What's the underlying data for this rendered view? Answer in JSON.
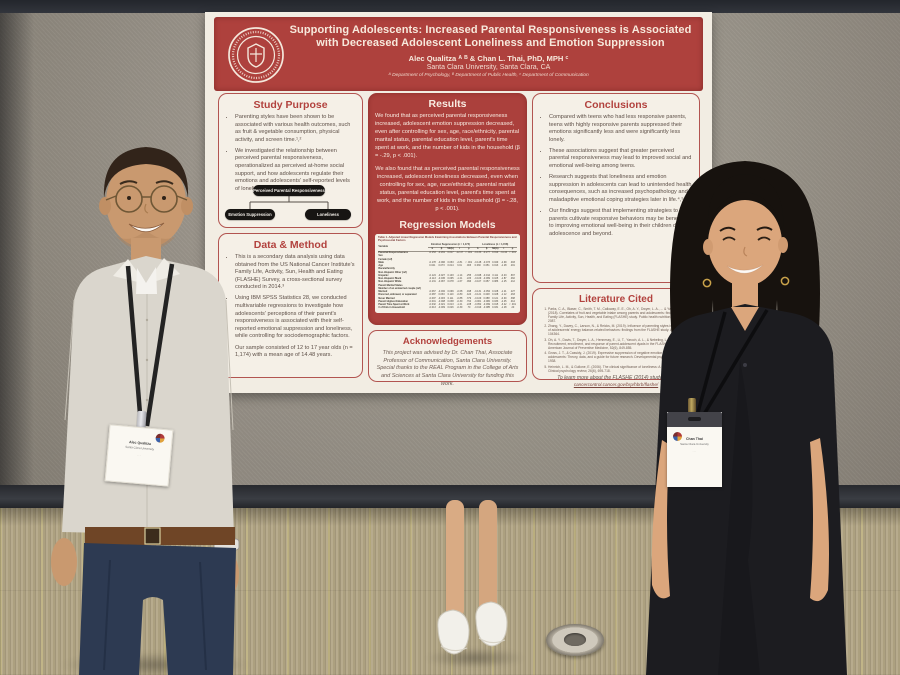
{
  "scene": {
    "colors": {
      "poster_red": "#AE413D",
      "poster_paper": "#F2EDE3",
      "panel_border_red": "#B25450",
      "heading_red": "#B2423E",
      "wall_gray": "#9A9388",
      "carpet_tan": "#B3A78A",
      "pill_black": "#171513"
    }
  },
  "poster": {
    "header": {
      "title": "Supporting Adolescents: Increased Parental Responsiveness is Associated with Decreased Adolescent Loneliness and Emotion Suppression",
      "authors": "Alec Qualitza ᴬ ᴮ & Chan L. Thai, PhD, MPH ᶜ",
      "affiliation": "Santa Clara University, Santa Clara, CA",
      "departments": "ᴬ Department of Psychology, ᴮ Department of Public Health, ᶜ Department of Communication",
      "logo_alt": "Santa Clara University seal, 1851"
    },
    "study_purpose": {
      "heading": "Study Purpose",
      "bullets": [
        "Parenting styles have been shown to be associated with various health outcomes, such as fruit & vegetable consumption, physical activity, and screen time.¹,²",
        "We investigated the relationship between perceived parental responsiveness, operationalized as perceived at-home social support, and how adolescents regulate their emotions and adolescents' self-reported levels of loneliness."
      ],
      "diagram": {
        "parent": "Perceived Parental Responsiveness",
        "child_left": "Emotion Suppression",
        "child_right": "Loneliness"
      }
    },
    "data_method": {
      "heading": "Data & Method",
      "bullets": [
        "This is a secondary data analysis using data obtained from the US National Cancer Institute's Family Life, Activity, Sun, Health and Eating (FLASHE) Survey, a cross-sectional survey conducted in 2014.³",
        "Using IBM SPSS Statistics 28, we conducted multivariable regressions to investigate how adolescents' perceptions of their parent's responsiveness is associated with their self-reported emotional suppression and loneliness, while controlling for sociodemographic factors.",
        "Our sample consisted of 12 to 17 year olds (n = 1,174) with a mean age of 14.48 years."
      ]
    },
    "results": {
      "heading": "Results",
      "paragraphs": [
        "We found that as perceived parental responsiveness increased, adolescent emotion suppression decreased, even after controlling for sex, age, race/ethnicity, parental marital status, parental education level, parent's time spent at work, and the number of kids in the household (β = -.29, p < .001).",
        "We also found that as perceived parental responsiveness increased, adolescent loneliness decreased, even when controlling for sex, age, race/ethnicity, parental marital status, parental education level, parent's time spent at work, and the number of kids in the household (β = -.28, p < .001)."
      ]
    },
    "regression": {
      "heading": "Regression Models",
      "table": {
        "caption": "Table 1. Adjusted Linear Regression Models Examining Associations Between Parental Responsiveness and Psychosocial Factors",
        "variable_label": "Variable",
        "groups": [
          "Emotion Suppression (n = 1,174)",
          "Loneliness (n = 1,158)"
        ],
        "sub_columns": [
          "b",
          "β",
          "SE(b)",
          "t",
          "p"
        ],
        "rows": [
          [
            "Parental Responsiveness",
            "-0.153",
            "-0.291",
            "0.017",
            "-12.47",
            "< .001",
            "-0.133",
            "-0.277",
            "0.019",
            "-11.44",
            "< .001"
          ],
          [
            "Sex",
            "",
            "",
            "",
            "",
            "",
            "",
            "",
            "",
            "",
            ""
          ],
          [
            "Female (ref)",
            "",
            "",
            "",
            "",
            "",
            "",
            "",
            "",
            "",
            ""
          ],
          [
            "Male",
            "-0.178",
            "-0.096",
            "0.063",
            "-2.81",
            "< .001",
            "-0.148",
            "-0.073",
            "0.049",
            "-2.99",
            ".003"
          ],
          [
            "Age",
            "0.041",
            "0.073",
            "0.014",
            "3.01",
            ".003",
            "0.030",
            "0.051",
            "0.013",
            "-1.28",
            ".201"
          ],
          [
            "Race/ethnicity",
            "",
            "",
            "",
            "",
            "",
            "",
            "",
            "",
            "",
            ""
          ],
          [
            "Non-Hispanic Other (ref)",
            "",
            "",
            "",
            "",
            "",
            "",
            "",
            "",
            "",
            ""
          ],
          [
            "Hispanic",
            "-0.124",
            "-0.027",
            "0.103",
            "-1.14",
            ".255",
            "-0.048",
            "-0.014",
            "0.111",
            "-0.43",
            ".667"
          ],
          [
            "Non-Hispanic Black",
            "-0.113",
            "-0.045",
            "0.095",
            "-1.21",
            ".226",
            "-0.109",
            "-0.069",
            "0.105",
            "-1.87",
            ".062"
          ],
          [
            "Non-Hispanic White",
            "-0.131",
            "-0.067",
            "0.078",
            "-1.67",
            ".096",
            "-0.107",
            "0.057",
            "0.086",
            "-1.25",
            ".212"
          ],
          [
            "Parent Marital Status",
            "",
            "",
            "",
            "",
            "",
            "",
            "",
            "",
            "",
            ""
          ],
          [
            "Member of an unmarried couple (ref)",
            "",
            "",
            "",
            "",
            "",
            "",
            "",
            "",
            "",
            ""
          ],
          [
            "Married",
            "-0.067",
            "-0.032",
            "0.099",
            "-0.68",
            ".498",
            "-0.131",
            "-0.054",
            "0.108",
            "-1.21",
            ".227"
          ],
          [
            "Divorced, widowed, or separated",
            "-0.087",
            "0.033",
            "0.110",
            "-0.80",
            ".424",
            "-0.121",
            "0.048",
            "0.108",
            "-1.12",
            ".263"
          ],
          [
            "Never Married",
            "-0.097",
            "-0.015",
            "0.111",
            "-0.88",
            ".379",
            "-0.109",
            "0.088",
            "0.121",
            "-0.90",
            ".368"
          ],
          [
            "Parent Highest Education",
            "-0.001",
            "-0.008",
            "0.038",
            "-0.30",
            ".764",
            "-0.061",
            "-0.082",
            "0.033",
            "-2.45",
            ".014"
          ],
          [
            "Parent Time Spent at Work",
            "-0.032",
            "-0.021",
            "0.013",
            "-1.21",
            ".228",
            "-0.052",
            "-0.099",
            "0.015",
            "-3.42",
            "< .001"
          ],
          [
            "# of Kids in Household",
            "-0.013",
            "-0.009",
            "0.026",
            "-0.39",
            ".70",
            "-0.019",
            "-0.085",
            "0.031",
            "-1.28",
            ".20"
          ]
        ]
      }
    },
    "acknowledgements": {
      "heading": "Acknowledgements",
      "text": "This project was advised by Dr. Chan Thai, Associate Professor of Communication, Santa Clara University. Special thanks to the REAL Program in the College of Arts and Sciences at Santa Clara University for funding this work."
    },
    "conclusions": {
      "heading": "Conclusions",
      "bullets": [
        "Compared with teens who had less responsive parents, teens with highly responsive parents suppressed their emotions significantly less and were significantly less lonely.",
        "These associations suggest that greater perceived parental responsiveness may lead to improved social and emotional well-being among teens.",
        "Research suggests that loneliness and emotion suppression in adolescents can lead to unintended health consequences, such as increased psychopathology and maladaptive emotional coping strategies later in life.⁴,⁵",
        "Our findings suggest that implementing strategies to help parents cultivate responsive behaviors may be beneficial to improving emotional well-being in their children during adolescence and beyond."
      ]
    },
    "literature": {
      "heading": "Literature Cited",
      "references": [
        "Parks, C. A., Blaser, C., Smith, T. M., Calloway, E. E., Oh, A. Y., Dwyer, L. A., ... & Yaroch, A. L. (2018). Correlates of fruit and vegetable intake among parents and adolescents: findings from the Family Life, Activity, Sun, Health, and Eating (FLASHE) study. Public health nutrition, 21(5), 2079-2087.",
        "Zhang, Y., Davey, C., Larson, N., & Reicks, M. (2019). Influence of parenting styles in the context of adolescents' energy balance-related behaviors: findings from the FLASHE study. Appetite, 142, 104364.",
        "Oh, A. Y., Davis, T., Dwyer, L. A., Hennessy, E., Li, T., Yaroch, A. L., & Nebeling, L. C. (2017). Recruitment, enrollment, and response of parent-adolescent dyads in the FLASHE study. American Journal of Preventive Medicine, 52(6), 849-855.",
        "Gross, J. T., & Cassidy, J. (2019). Expressive suppression of negative emotion in children and adolescents: Theory, data, and a guide for future research. Developmental psychology, 55(9), 1938.",
        "Heinrich, L. M., & Gullone, E. (2006). The clinical significance of loneliness: A literature review. Clinical psychology review, 26(6), 695-718."
      ],
      "footer": "To learn more about the FLASHE (2014) study, visit:",
      "link": "cancercontrol.cancer.gov/brp/hbrb/flashe/"
    }
  },
  "badges": {
    "left": {
      "name": "Alec Qualitza",
      "org": "Santa Clara University",
      "sub": "· · ·"
    },
    "right": {
      "name": "Chan Thai",
      "org": "Santa Clara University",
      "sub": "· · ·"
    }
  }
}
